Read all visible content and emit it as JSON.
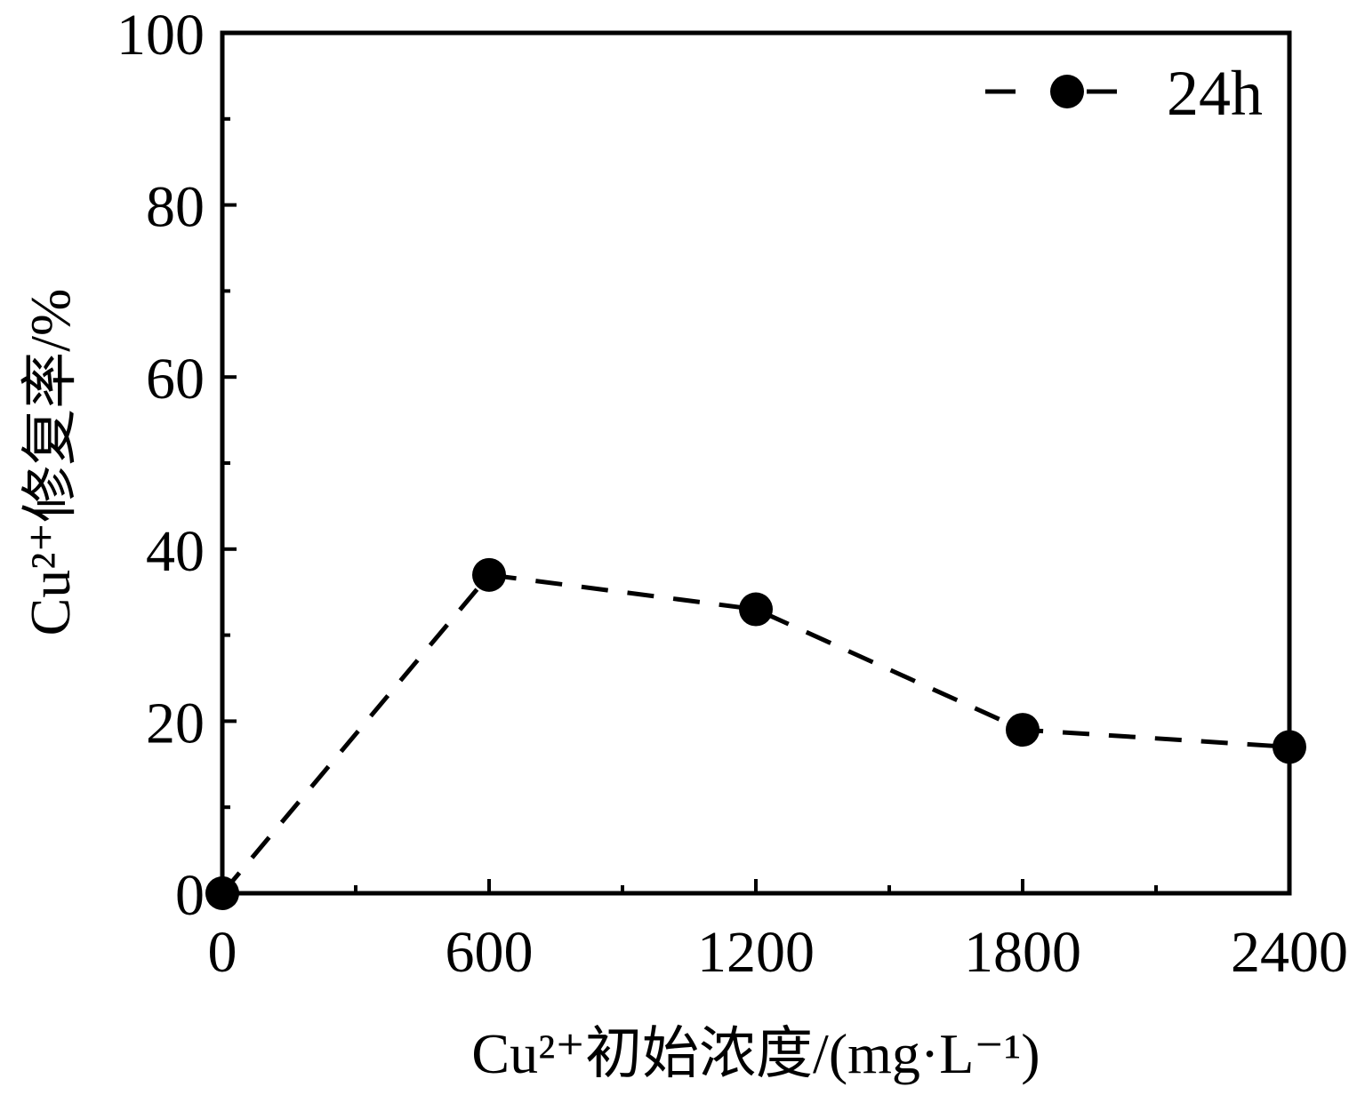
{
  "chart_data": {
    "type": "line",
    "xlabel": "Cu²⁺初始浓度/(mg·L⁻¹)",
    "ylabel": "Cu²⁺修复率/%",
    "xlim": [
      0,
      2400
    ],
    "ylim": [
      0,
      100
    ],
    "x_ticks": [
      0,
      600,
      1200,
      1800,
      2400
    ],
    "y_ticks": [
      0,
      20,
      40,
      60,
      80,
      100
    ],
    "x_tick_labels": [
      "0",
      "600",
      "1200",
      "1800",
      "2400"
    ],
    "y_tick_labels": [
      "0",
      "20",
      "40",
      "60",
      "80",
      "100"
    ],
    "grid": false,
    "legend_position": "top-right",
    "line_style": "dashed",
    "marker": "filled-circle",
    "series_color": "#000000",
    "series": [
      {
        "name": "24h",
        "x": [
          0,
          600,
          1200,
          1800,
          2400
        ],
        "y": [
          0,
          37,
          33,
          19,
          17
        ]
      }
    ]
  }
}
